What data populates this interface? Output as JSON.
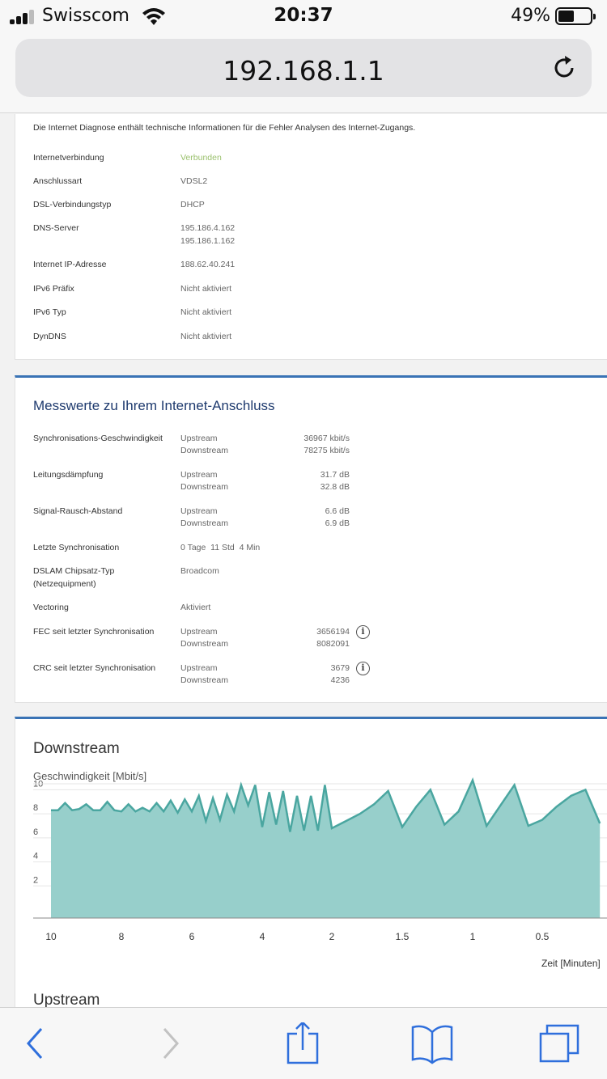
{
  "status_bar": {
    "carrier": "Swisscom",
    "time": "20:37",
    "battery_percent": "49%",
    "battery_level": 0.49,
    "signal_bars": 3
  },
  "url_bar": {
    "url": "192.168.1.1"
  },
  "diagnose": {
    "intro": "Die Internet Diagnose enthält technische Informationen für die Fehler Analysen des Internet-Zugangs.",
    "rows": [
      {
        "label": "Internetverbindung",
        "value": "Verbunden"
      },
      {
        "label": "Anschlussart",
        "value": "VDSL2"
      },
      {
        "label": "DSL-Verbindungstyp",
        "value": "DHCP"
      },
      {
        "label": "DNS-Server",
        "value": "195.186.4.162",
        "value2": "195.186.1.162"
      },
      {
        "label": "Internet IP-Adresse",
        "value": "188.62.40.241"
      },
      {
        "label": "IPv6 Präfix",
        "value": "Nicht aktiviert"
      },
      {
        "label": "IPv6 Typ",
        "value": "Nicht aktiviert"
      },
      {
        "label": "DynDNS",
        "value": "Nicht aktiviert"
      }
    ],
    "status_color": "#9bc16e"
  },
  "messwerte": {
    "title": "Messwerte zu Ihrem Internet-Anschluss",
    "up": "Upstream",
    "down": "Downstream",
    "rows": [
      {
        "label": "Synchronisations-Geschwindigkeit",
        "up": "36967 kbit/s",
        "down": "78275 kbit/s"
      },
      {
        "label": "Leitungsdämpfung",
        "up": "31.7 dB",
        "down": "32.8 dB"
      },
      {
        "label": "Signal-Rausch-Abstand",
        "up": "6.6 dB",
        "down": "6.9 dB"
      },
      {
        "label": "Letzte Synchronisation",
        "value": "0 Tage  11 Std  4 Min"
      },
      {
        "label": "DSLAM Chipsatz-Typ",
        "label2": "(Netzequipment)",
        "value": "Broadcom"
      },
      {
        "label": "Vectoring",
        "value": "Aktiviert"
      },
      {
        "label": "FEC seit letzter Synchronisation",
        "up": "3656194",
        "down": "8082091",
        "info": "i"
      },
      {
        "label": "CRC seit letzter Synchronisation",
        "up": "3679",
        "down": "4236",
        "info": "i"
      }
    ],
    "accent_color": "#3a73b5"
  },
  "downstream_chart": {
    "title": "Downstream",
    "ylabel": "Geschwindigkeit [Mbit/s]",
    "xlabel": "Zeit [Minuten]",
    "fill_color": "#97cfcb",
    "line_color": "#4aa6a0"
  },
  "chart_data": {
    "type": "area",
    "title": "Downstream",
    "ylabel": "Geschwindigkeit [Mbit/s]",
    "xlabel": "Zeit [Minuten]",
    "x_ticks": [
      "10",
      "8",
      "6",
      "4",
      "2",
      "1.5",
      "1",
      "0.5"
    ],
    "y_ticks": [
      "2",
      "4",
      "6",
      "8",
      "10"
    ],
    "ylim": [
      0,
      10.5
    ],
    "grid": true,
    "series": [
      {
        "x": [
          10,
          9.8,
          9.6,
          9.4,
          9.2,
          9.0,
          8.8,
          8.6,
          8.4,
          8.2,
          8.0,
          7.8,
          7.6,
          7.4,
          7.2,
          7.0,
          6.8,
          6.6,
          6.4,
          6.2,
          6.0,
          5.8,
          5.6,
          5.4,
          5.2,
          5.0,
          4.8,
          4.6,
          4.4,
          4.2,
          4.0,
          3.8,
          3.6,
          3.4,
          3.2,
          3.0,
          2.8,
          2.6,
          2.4,
          2.2,
          2.0,
          1.9,
          1.8,
          1.7,
          1.6,
          1.5,
          1.4,
          1.3,
          1.2,
          1.1,
          1.0,
          0.9,
          0.8,
          0.7,
          0.6,
          0.5,
          0.4,
          0.3,
          0.2,
          0.1
        ],
        "values": [
          8.3,
          8.3,
          8.9,
          8.3,
          8.4,
          8.8,
          8.3,
          8.3,
          9.0,
          8.3,
          8.2,
          8.8,
          8.2,
          8.5,
          8.2,
          8.9,
          8.2,
          9.1,
          8.1,
          9.2,
          8.2,
          9.5,
          7.4,
          9.3,
          7.5,
          9.6,
          8.2,
          10.4,
          8.7,
          10.4,
          6.9,
          9.8,
          7.1,
          9.9,
          6.5,
          9.5,
          6.6,
          9.5,
          6.6,
          10.4,
          6.8,
          7.4,
          8.0,
          8.8,
          9.9,
          6.9,
          8.6,
          10.0,
          7.1,
          8.2,
          10.8,
          7.0,
          8.7,
          10.4,
          7.0,
          7.5,
          8.6,
          9.5,
          10.0,
          7.2
        ]
      }
    ]
  },
  "upstream_chart": {
    "title": "Upstream"
  },
  "toolbar": {
    "icon_color": "#2f6fdc",
    "disabled_color": "#c2c2c2"
  }
}
